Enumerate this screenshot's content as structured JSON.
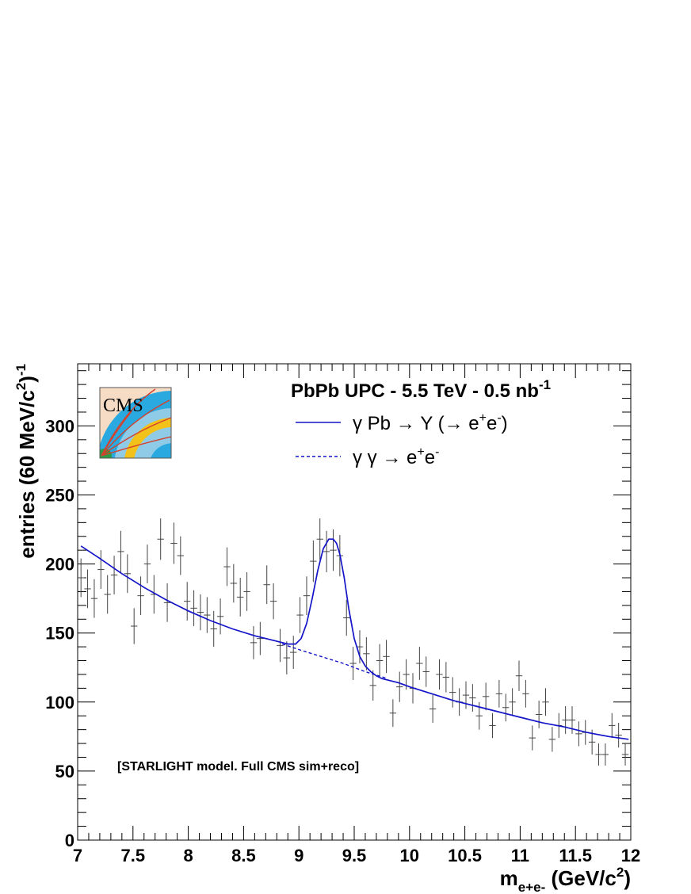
{
  "chart_data": {
    "type": "line",
    "title": "PbPb UPC - 5.5 TeV - 0.5 nb",
    "title_sup": "-1",
    "xlabel": "m",
    "xlabel_sub": "e+e-",
    "xlabel_unit_pre": " (GeV/c",
    "xlabel_unit_sup": "2",
    "xlabel_unit_post": ")",
    "ylabel": "entries (60 MeV/c",
    "ylabel_sup_1": "2",
    "ylabel_post": ")",
    "ylabel_sup_2": "-1",
    "xlim": [
      7,
      12
    ],
    "ylim": [
      0,
      345
    ],
    "x_ticks": [
      7,
      7.5,
      8,
      8.5,
      9,
      9.5,
      10,
      10.5,
      11,
      11.5,
      12
    ],
    "x_tick_labels": [
      "7",
      "7.5",
      "8",
      "8.5",
      "9",
      "9.5",
      "10",
      "10.5",
      "11",
      "11.5",
      "12"
    ],
    "y_ticks": [
      0,
      50,
      100,
      150,
      200,
      250,
      300
    ],
    "y_tick_labels": [
      "0",
      "50",
      "100",
      "150",
      "200",
      "250",
      "300"
    ],
    "grid": false,
    "legend_position": "top-right",
    "annotation": "[STARLIGHT model. Full CMS sim+reco]",
    "logo_text": "CMS",
    "colors": {
      "fit": "#1414c8",
      "data": "#444444",
      "axis": "#000000"
    },
    "legend": [
      {
        "label": "γ Pb → Υ (→ e",
        "sup1": "+",
        "mid": "e",
        "sup2": "-",
        "post": ")",
        "style": "solid"
      },
      {
        "label": "γ γ → e",
        "sup1": "+",
        "mid": "e",
        "sup2": "-",
        "post": "",
        "style": "dashed"
      }
    ],
    "data_points": {
      "x_err": 0.03,
      "x": [
        7.03,
        7.09,
        7.15,
        7.21,
        7.27,
        7.33,
        7.39,
        7.45,
        7.51,
        7.57,
        7.63,
        7.69,
        7.75,
        7.81,
        7.87,
        7.93,
        7.99,
        8.05,
        8.11,
        8.17,
        8.23,
        8.29,
        8.35,
        8.41,
        8.47,
        8.53,
        8.59,
        8.65,
        8.71,
        8.77,
        8.83,
        8.89,
        8.95,
        9.01,
        9.07,
        9.13,
        9.19,
        9.25,
        9.31,
        9.37,
        9.43,
        9.49,
        9.55,
        9.61,
        9.67,
        9.73,
        9.79,
        9.85,
        9.91,
        9.97,
        10.03,
        10.09,
        10.15,
        10.21,
        10.27,
        10.33,
        10.39,
        10.45,
        10.51,
        10.57,
        10.63,
        10.69,
        10.75,
        10.81,
        10.87,
        10.93,
        10.99,
        11.05,
        11.11,
        11.17,
        11.23,
        11.29,
        11.35,
        11.41,
        11.47,
        11.53,
        11.59,
        11.65,
        11.71,
        11.77,
        11.83,
        11.89,
        11.95
      ],
      "y": [
        190,
        182,
        175,
        196,
        178,
        192,
        209,
        193,
        155,
        177,
        200,
        178,
        218,
        172,
        215,
        206,
        173,
        168,
        165,
        163,
        153,
        162,
        198,
        186,
        176,
        180,
        143,
        146,
        185,
        173,
        141,
        132,
        136,
        163,
        177,
        202,
        218,
        209,
        210,
        206,
        161,
        128,
        140,
        135,
        112,
        130,
        133,
        92,
        111,
        120,
        110,
        128,
        122,
        95,
        120,
        118,
        107,
        100,
        105,
        103,
        90,
        104,
        83,
        106,
        96,
        100,
        119,
        106,
        74,
        91,
        100,
        73,
        83,
        87,
        87,
        77,
        78,
        71,
        62,
        62,
        83,
        76,
        62
      ],
      "y_err": [
        14,
        14,
        14,
        14,
        14,
        14,
        15,
        14,
        13,
        14,
        14,
        14,
        15,
        14,
        15,
        14,
        14,
        13,
        13,
        13,
        13,
        13,
        14,
        14,
        14,
        14,
        12,
        12,
        14,
        13,
        12,
        12,
        12,
        13,
        14,
        15,
        15,
        15,
        15,
        15,
        13,
        12,
        12,
        12,
        11,
        12,
        12,
        10,
        11,
        11,
        11,
        12,
        11,
        10,
        11,
        11,
        11,
        10,
        10,
        10,
        10,
        10,
        9,
        10,
        10,
        10,
        11,
        10,
        9,
        10,
        10,
        9,
        9,
        10,
        10,
        9,
        9,
        9,
        8,
        8,
        9,
        9,
        8
      ]
    },
    "series": [
      {
        "name": "γ Pb → Υ (→ e+e-)",
        "style": "solid",
        "x": [
          7.03,
          7.2,
          7.4,
          7.6,
          7.8,
          8.0,
          8.2,
          8.4,
          8.6,
          8.8,
          8.9,
          8.97,
          9.02,
          9.07,
          9.12,
          9.17,
          9.22,
          9.27,
          9.31,
          9.34,
          9.37,
          9.41,
          9.45,
          9.5,
          9.55,
          9.6,
          9.65,
          9.7,
          9.75,
          9.8,
          9.85,
          9.9,
          10.0,
          10.2,
          10.4,
          10.6,
          10.8,
          11.0,
          11.2,
          11.4,
          11.6,
          11.8,
          11.98
        ],
        "y": [
          213,
          204,
          193,
          183,
          174,
          166,
          159,
          153,
          148,
          144,
          142,
          142,
          146,
          157,
          175,
          195,
          211,
          218,
          218,
          215,
          207,
          190,
          168,
          146,
          133,
          126,
          122,
          119,
          117,
          116,
          115,
          114,
          111,
          106,
          101,
          97,
          93,
          89,
          85,
          82,
          78,
          75,
          73
        ]
      },
      {
        "name": "γ γ → e+e-",
        "style": "dashed",
        "x": [
          8.85,
          9.0,
          9.2,
          9.4,
          9.6,
          9.8
        ],
        "y": [
          142,
          138,
          133,
          128,
          122,
          117
        ]
      }
    ]
  }
}
